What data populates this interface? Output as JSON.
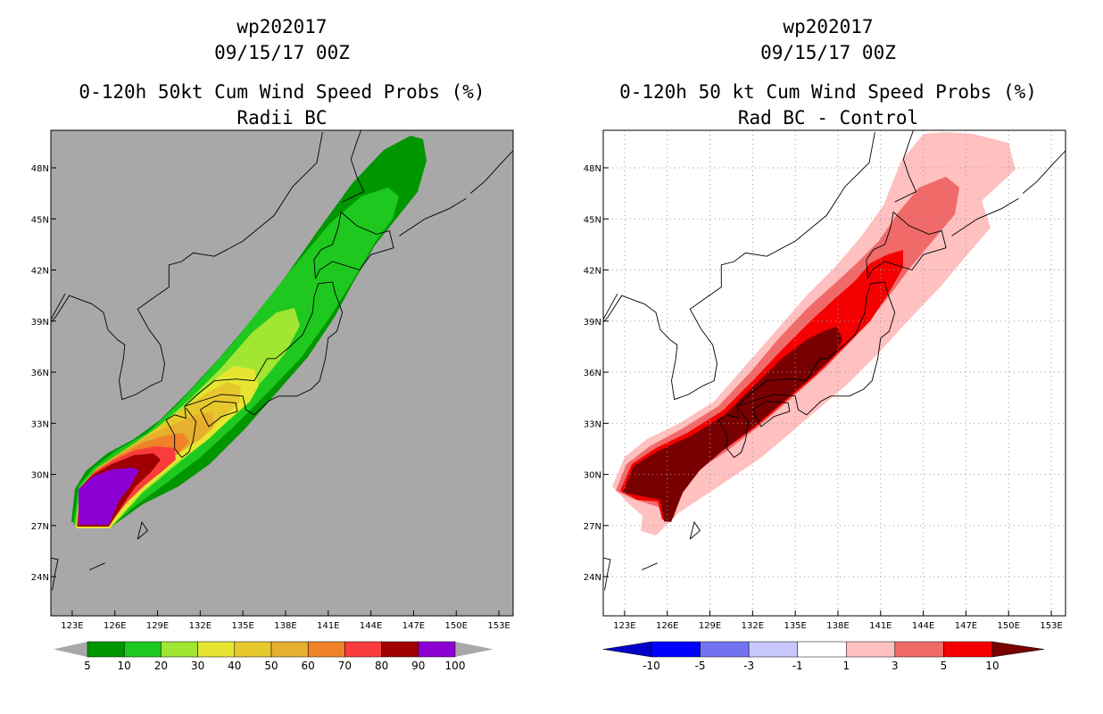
{
  "panels": [
    {
      "title_storm": "wp202017",
      "title_time": "09/15/17 00Z",
      "title_product": "0-120h 50kt Cum Wind Speed Probs (%)",
      "title_subtitle": "Radii BC"
    },
    {
      "title_storm": "wp202017",
      "title_time": "09/15/17 00Z",
      "title_product": "0-120h 50 kt Cum Wind Speed Probs (%)",
      "title_subtitle": "Rad BC - Control"
    }
  ],
  "chart_data": [
    {
      "type": "heatmap",
      "title": "0-120h 50kt Cum Wind Speed Probs (%) - Radii BC",
      "background_color": "#a8a8a8",
      "x_ticks": [
        "123E",
        "126E",
        "129E",
        "132E",
        "135E",
        "138E",
        "141E",
        "144E",
        "147E",
        "150E",
        "153E"
      ],
      "y_ticks": [
        "24N",
        "27N",
        "30N",
        "33N",
        "36N",
        "39N",
        "42N",
        "45N",
        "48N"
      ],
      "x_range_deg_e": [
        121.5,
        154
      ],
      "y_range_deg_n": [
        21.7,
        50.2
      ],
      "colorbar": {
        "labels": [
          "5",
          "10",
          "20",
          "30",
          "40",
          "50",
          "60",
          "70",
          "80",
          "90",
          "100"
        ],
        "colors": [
          "#009600",
          "#1ec81e",
          "#a0e632",
          "#e6e632",
          "#e6c82d",
          "#e6af2d",
          "#f08228",
          "#fa3c3c",
          "#a00000",
          "#8c00d2"
        ]
      },
      "contours": [
        {
          "level": "5",
          "color": "#009600"
        },
        {
          "level": "10",
          "color": "#1ec81e"
        },
        {
          "level": "20",
          "color": "#a0e632"
        },
        {
          "level": "30",
          "color": "#e6e632"
        },
        {
          "level": "40",
          "color": "#e6c82d"
        },
        {
          "level": "50",
          "color": "#e6af2d"
        },
        {
          "level": "60",
          "color": "#f08228"
        },
        {
          "level": "70",
          "color": "#fa3c3c"
        },
        {
          "level": "80",
          "color": "#a00000"
        },
        {
          "level": "90",
          "color": "#8c00d2"
        }
      ]
    },
    {
      "type": "heatmap",
      "title": "0-120h 50 kt Cum Wind Speed Probs (%) - Rad BC - Control",
      "background_color": "#ffffff",
      "x_ticks": [
        "123E",
        "126E",
        "129E",
        "132E",
        "135E",
        "138E",
        "141E",
        "144E",
        "147E",
        "150E",
        "153E"
      ],
      "y_ticks": [
        "24N",
        "27N",
        "30N",
        "33N",
        "36N",
        "39N",
        "42N",
        "45N",
        "48N"
      ],
      "x_range_deg_e": [
        121.5,
        154
      ],
      "y_range_deg_n": [
        21.7,
        50.2
      ],
      "colorbar": {
        "labels": [
          "-10",
          "-5",
          "-3",
          "-1",
          "1",
          "3",
          "5",
          "10"
        ],
        "colors": [
          "#0000c8",
          "#0000ff",
          "#7373f0",
          "#c8c8ff",
          "#ffffff",
          "#ffc0c0",
          "#f06a6a",
          "#f50000",
          "#780000"
        ]
      },
      "contours": [
        {
          "level": "1",
          "color": "#ffc0c0"
        },
        {
          "level": "3",
          "color": "#f06a6a"
        },
        {
          "level": "5",
          "color": "#f50000"
        },
        {
          "level": "10",
          "color": "#780000"
        }
      ]
    }
  ]
}
